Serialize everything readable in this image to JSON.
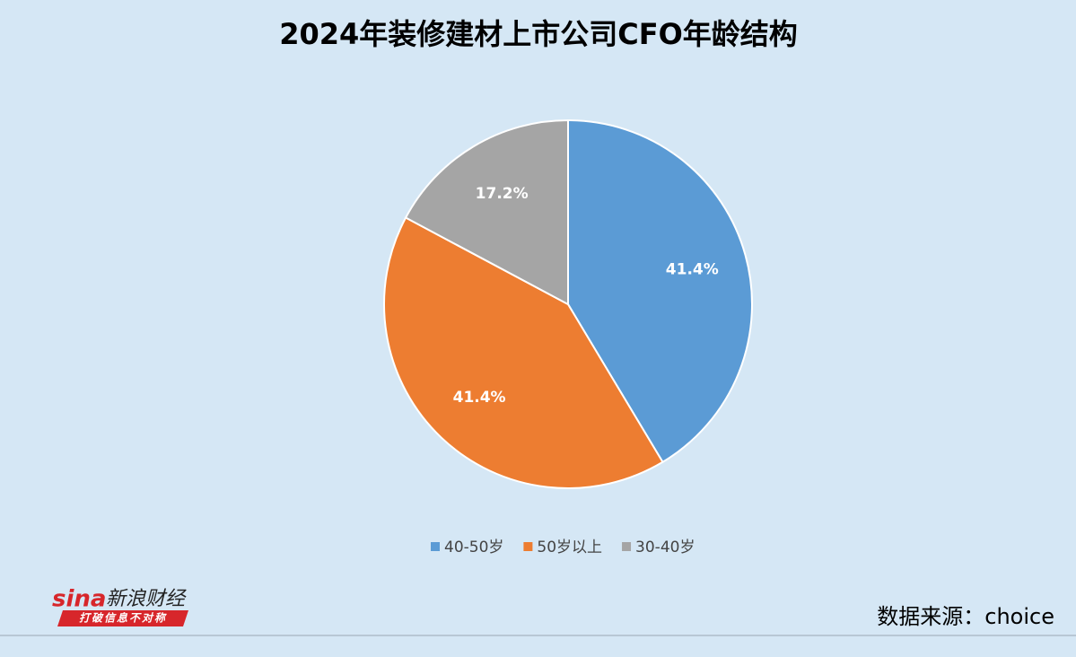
{
  "chart_data": {
    "type": "pie",
    "title": "2024年装修建材上市公司CFO年龄结构",
    "categories": [
      "40-50岁",
      "50岁以上",
      "30-40岁"
    ],
    "values": [
      41.4,
      41.4,
      17.2
    ],
    "value_labels": [
      "41.4%",
      "41.4%",
      "17.2%"
    ],
    "colors": [
      "#5b9bd5",
      "#ed7d31",
      "#a5a5a5"
    ],
    "legend": "bottom"
  },
  "source": "数据来源：choice",
  "logo": {
    "brand": "sina",
    "name": "新浪财经",
    "slogan": "打破信息不对称"
  }
}
